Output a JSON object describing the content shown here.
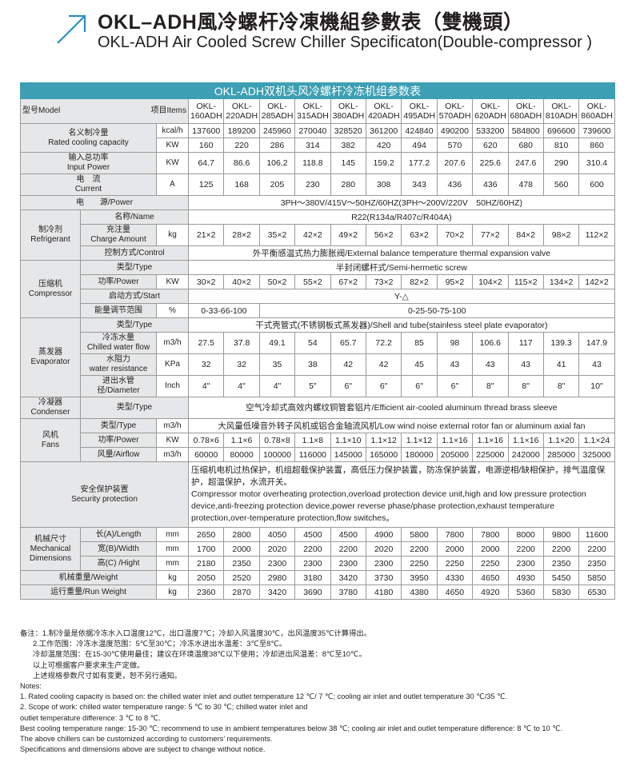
{
  "header": {
    "title_cn": "OKL–ADH風冷螺杆冷凍機組參數表（雙機頭）",
    "title_en": "OKL-ADH Air Cooled Screw Chiller Specificaton(Double-compressor )"
  },
  "table": {
    "caption": "OKL-ADH双机头风冷螺杆冷冻机组参数表",
    "model_label": "型号Model",
    "items_label": "项目Items",
    "models": [
      "OKL-\n160ADH",
      "OKL-\n220ADH",
      "OKL-\n285ADH",
      "OKL-\n315ADH",
      "OKL-\n380ADH",
      "OKL-\n420ADH",
      "OKL-\n495ADH",
      "OKL-\n570ADH",
      "OKL-\n620ADH",
      "OKL-\n680ADH",
      "OKL-\n810ADH",
      "OKL-\n860ADH"
    ],
    "sections": [
      {
        "label": "名义制冷量\nRated cooling capacity",
        "rows": [
          {
            "unit": "kcal/h",
            "values": [
              137600,
              189200,
              245960,
              270040,
              328520,
              361200,
              424840,
              490200,
              533200,
              584800,
              696600,
              739600
            ]
          },
          {
            "unit": "KW",
            "values": [
              160,
              220,
              286,
              314,
              382,
              420,
              494,
              570,
              620,
              680,
              810,
              860
            ]
          }
        ]
      },
      {
        "label": "输入总功率\nInput Power",
        "rows": [
          {
            "unit": "KW",
            "values": [
              64.7,
              86.6,
              106.2,
              118.8,
              145,
              159.2,
              177.2,
              207.6,
              225.6,
              247.6,
              290,
              310.4
            ]
          }
        ]
      },
      {
        "label": "电　流\nCurrent",
        "rows": [
          {
            "unit": "A",
            "values": [
              125,
              168,
              205,
              230,
              280,
              308,
              343,
              436,
              436,
              478,
              560,
              600
            ]
          }
        ]
      },
      {
        "label": "电　　源/Power",
        "rows": [
          {
            "values": [
              "3PH～380V/415V～50HZ/60HZ(3PH～200V/220V　50HZ/60HZ)"
            ]
          }
        ]
      },
      {
        "label": "制冷剂\nRefrigerant",
        "rows": [
          {
            "label": "名称/Name",
            "values": [
              "R22(R134a/R407c/R404A)"
            ]
          },
          {
            "label": "充注量\nCharge Amount",
            "unit": "kg",
            "values": [
              "21×2",
              "28×2",
              "35×2",
              "42×2",
              "49×2",
              "56×2",
              "63×2",
              "70×2",
              "77×2",
              "84×2",
              "98×2",
              "112×2"
            ]
          },
          {
            "label": "控制方式/Control",
            "values": [
              "外平衡感温式热力膨胀阀/External balance temperature thermal expansion valve"
            ]
          }
        ]
      },
      {
        "label": "压缩机\nCompressor",
        "rows": [
          {
            "label": "类型/Type",
            "values": [
              "半封闭螺杆式/Semi-hermetic screw"
            ]
          },
          {
            "label": "功率/Power",
            "unit": "KW",
            "values": [
              "30×2",
              "40×2",
              "50×2",
              "55×2",
              "67×2",
              "73×2",
              "82×2",
              "95×2",
              "104×2",
              "115×2",
              "134×2",
              "142×2"
            ]
          },
          {
            "label": "启动方式/Start",
            "values": [
              "Y-△"
            ]
          },
          {
            "label": "能量调节范围",
            "unit": "%",
            "values": [
              "0-33-66-100",
              "0-25-50-75-100"
            ]
          }
        ]
      },
      {
        "label": "蒸发器\nEvaporator",
        "rows": [
          {
            "label": "类型/Type",
            "values": [
              "干式壳管式(不锈钢板式蒸发器)/Shell and tube(stainless steel plate evaporator)"
            ]
          },
          {
            "label": "冷冻水量\nChilled water flow",
            "unit": "m3/h",
            "values": [
              27.5,
              37.8,
              49.1,
              54,
              65.7,
              72.2,
              85,
              98,
              106.6,
              117,
              139.3,
              147.9
            ]
          },
          {
            "label": "水阻力\nwater resistance",
            "unit": "KPa",
            "values": [
              32,
              32,
              35,
              38,
              42,
              42,
              45,
              43,
              43,
              43,
              41,
              43
            ]
          },
          {
            "label": "进出水管径/Diameter",
            "unit": "Inch",
            "values": [
              "4\"",
              "4\"",
              "4\"",
              "5\"",
              "6\"",
              "6\"",
              "6\"",
              "6\"",
              "8\"",
              "8\"",
              "8\"",
              "10\""
            ]
          }
        ]
      },
      {
        "label": "冷凝器\nCondenser",
        "rows": [
          {
            "label": "类型/Type",
            "values": [
              "空气冷却式高效内螺纹铜管套铝片/Efficient air-cooled aluminum thread brass sleeve"
            ]
          }
        ]
      },
      {
        "label": "风机\nFans",
        "rows": [
          {
            "label": "类型/Type",
            "unit": "m3/h",
            "values": [
              "大风量低噪音外转子风机或铝合金轴流风机/Low wind noise external rotor fan or aluminum axial fan"
            ]
          },
          {
            "label": "功率/Power",
            "unit": "KW",
            "values": [
              "0.78×6",
              "1.1×6",
              "0.78×8",
              "1.1×8",
              "1.1×10",
              "1.1×12",
              "1.1×12",
              "1.1×16",
              "1.1×16",
              "1.1×16",
              "1.1×20",
              "1.1×24"
            ]
          },
          {
            "label": "风量/Airflow",
            "unit": "m3/h",
            "values": [
              60000,
              80000,
              100000,
              116000,
              145000,
              165000,
              180000,
              205000,
              225000,
              242000,
              285000,
              325000
            ]
          }
        ]
      },
      {
        "label": "安全保护装置\nSecurity protection",
        "rows": [
          {
            "values": [
              "压缩机电机过热保护，机组超载保护装置，高低压力保护装置，防冻保护装置，电源逆相/缺相保护，排气温度保护，超温保护，水流开关。\nCompressor motor overheating protection,overload protection device unit,high and low pressure protection device,anti-freezing protection device,power reverse phase/phase protection,exhaust temperature protection,over-temperature protection,flow switches。"
            ]
          }
        ]
      },
      {
        "label": "机械尺寸\nMechanical\nDimensions",
        "rows": [
          {
            "label": "长(A)/Length",
            "unit": "mm",
            "values": [
              2650,
              2800,
              4050,
              4500,
              4500,
              4900,
              5800,
              7800,
              7800,
              8000,
              9800,
              11600
            ]
          },
          {
            "label": "宽(B)/Width",
            "unit": "mm",
            "values": [
              1700,
              2000,
              2020,
              2200,
              2200,
              2020,
              2200,
              2000,
              2000,
              2200,
              2200,
              2200
            ]
          },
          {
            "label": "高(C) /Hight",
            "unit": "mm",
            "values": [
              2180,
              2350,
              2300,
              2300,
              2300,
              2300,
              2250,
              2250,
              2250,
              2300,
              2350,
              2350
            ]
          }
        ]
      },
      {
        "label": "机械重量/Weight",
        "rows": [
          {
            "unit": "kg",
            "values": [
              2050,
              2520,
              2980,
              3180,
              3420,
              3730,
              3950,
              4330,
              4650,
              4930,
              5450,
              5850
            ]
          }
        ]
      },
      {
        "label": "运行重量/Run Weight",
        "rows": [
          {
            "unit": "kg",
            "values": [
              2360,
              2870,
              3420,
              3690,
              3780,
              4180,
              4380,
              4650,
              4920,
              5360,
              5830,
              6530
            ]
          }
        ]
      }
    ]
  },
  "notes": {
    "cn": [
      "备注：1.制冷量是依据冷冻水入口温度12℃，出口温度7℃；冷却入风温度30℃，出风温度35℃计算得出。",
      "2.工作范围：冷冻水温度范围：5℃至30℃；冷冻水进出水温差：3℃至8℃。",
      "冷却温度范围：在15-30℃使用最佳；建议在环境温度38℃以下使用；冷却进出风温差：8℃至10℃。",
      "以上可根据客户要求来生产定做。",
      "上述规格参数尺寸如有变更，恕不另行通知。"
    ],
    "en": [
      "Notes:",
      "1. Rated cooling capacity is based on: the chilled water inlet and outlet temperature 12 ℃/ 7 ℃; cooling air inlet and outlet temperature 30 ℃/35 ℃.",
      "2. Scope of work: chilled water temperature range: 5 ℃ to 30 ℃; chilled water inlet and",
      "outlet temperature difference: 3 ℃ to 8 ℃.",
      "Best cooling temperature range: 15-30 ℃; recommend to use in ambient temperatures below 38 ℃; cooling air inlet and outlet temperature difference: 8 ℃ to 10 ℃.",
      " The above chillers can be customized according to customers’ requirements.",
      "Specifications and dimensions above are subject to change without notice."
    ]
  }
}
